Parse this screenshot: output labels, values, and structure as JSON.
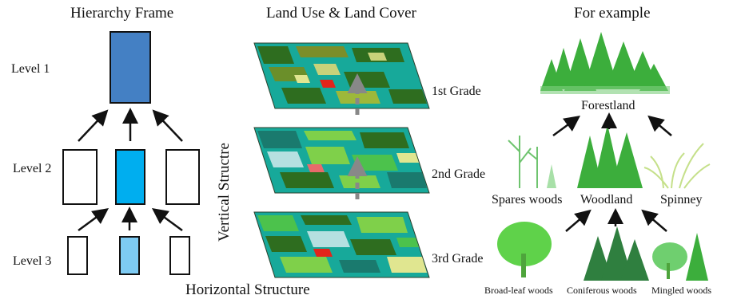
{
  "left_panel": {
    "title": "Hierarchy Frame",
    "levels": [
      "Level 1",
      "Level 2",
      "Level 3"
    ]
  },
  "middle_panel": {
    "title": "Land Use & Land Cover",
    "grades": [
      "1st Grade",
      "2nd Grade",
      "3rd Grade"
    ],
    "vertical_label": "Vertical Structre",
    "horizontal_label": "Horizontal Structure"
  },
  "right_panel": {
    "title": "For example",
    "level1": "Forestland",
    "level2": [
      "Spares woods",
      "Woodland",
      "Spinney"
    ],
    "level3": [
      "Broad-leaf woods",
      "Coniferous woods",
      "Mingled woods"
    ]
  },
  "colors": {
    "level1_box": "#4480c4",
    "level2_box": "#00aeef",
    "level3_box": "#7ecbf3",
    "tree_green": "#3cae3c",
    "map_teal": "#17a99a",
    "map_dark": "#2e6d1f"
  }
}
